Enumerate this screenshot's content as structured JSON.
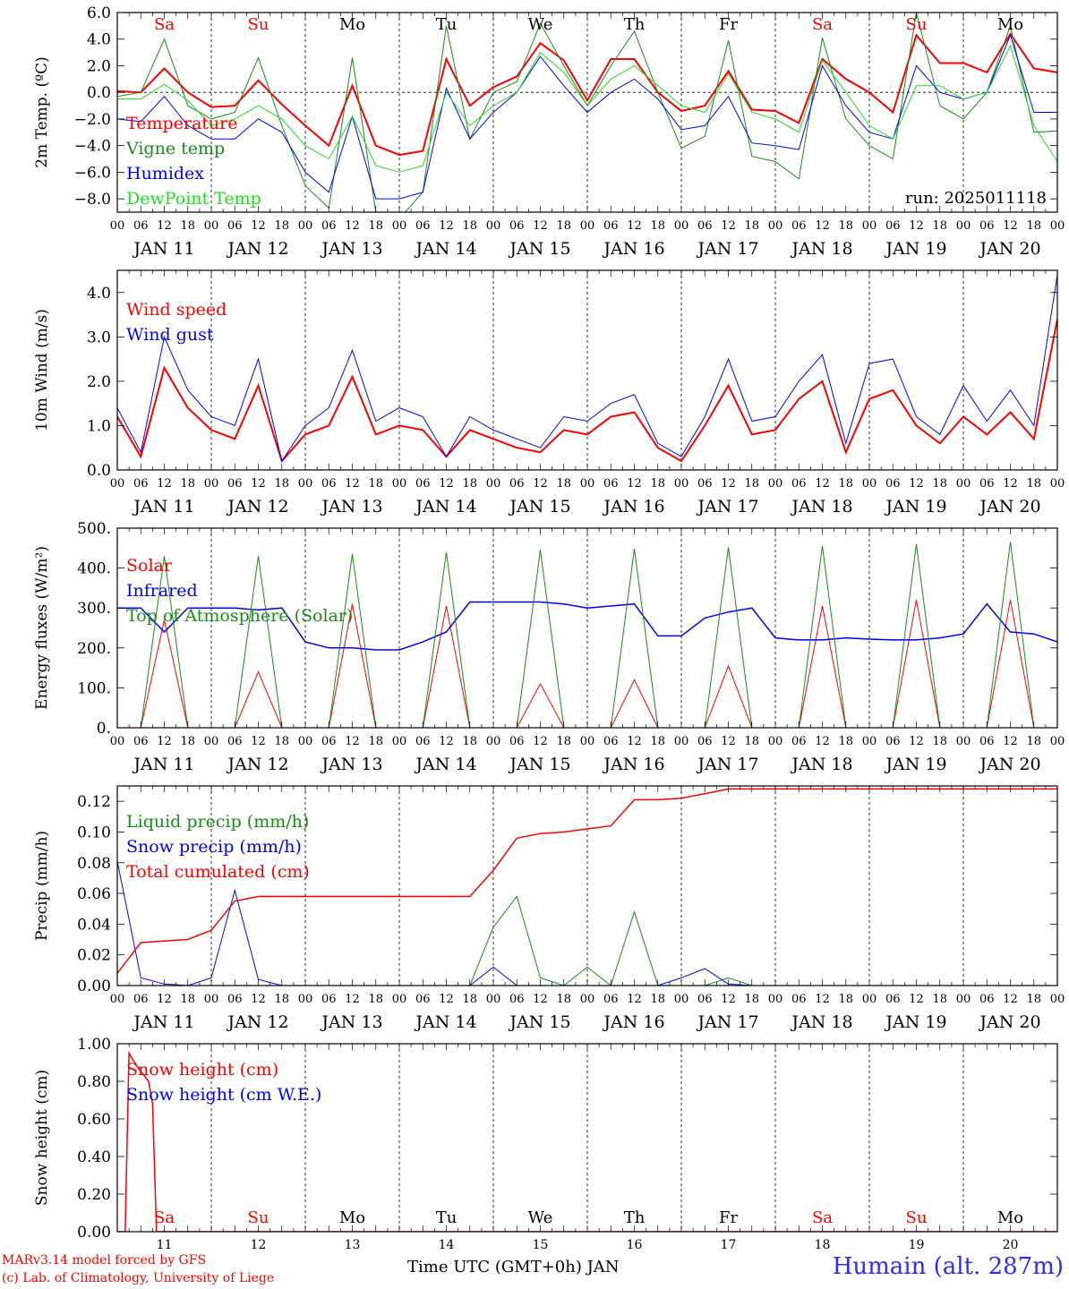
{
  "colors": {
    "red": "#ff0000",
    "green": "#1a8a1a",
    "blue": "#0000ff",
    "lightgreen": "#22dd22",
    "darkred": "#ff0000",
    "black": "#000000"
  },
  "x_axis": {
    "hour_labels": [
      "00",
      "06",
      "12",
      "18"
    ],
    "end_label": "00",
    "days": [
      "JAN 11",
      "JAN 12",
      "JAN 13",
      "JAN 14",
      "JAN 15",
      "JAN 16",
      "JAN 17",
      "JAN 18",
      "JAN 19",
      "JAN 20"
    ],
    "weekdays": [
      "Sa",
      "Su",
      "Mo",
      "Tu",
      "We",
      "Th",
      "Fr",
      "Sa",
      "Su",
      "Mo"
    ],
    "weekday_colors": [
      "#ff0000",
      "#ff0000",
      "#000000",
      "#000000",
      "#000000",
      "#000000",
      "#000000",
      "#ff0000",
      "#ff0000",
      "#000000"
    ],
    "bottom_day_numbers": [
      "11",
      "12",
      "13",
      "14",
      "15",
      "16",
      "17",
      "18",
      "19",
      "20"
    ]
  },
  "footer": {
    "credit1": "MARv3.14 model forced by GFS",
    "credit2": "(c) Lab. of Climatology, University of Liege",
    "time_label": "Time UTC (GMT+0h) JAN",
    "station": "Humain (alt. 287m)"
  },
  "chart_data": [
    {
      "type": "line",
      "ylabel": "2m Temp. (ºC)",
      "ylim": [
        -9,
        6
      ],
      "yticks": [
        -8,
        -6,
        -4,
        -2,
        0,
        2,
        4,
        6
      ],
      "ytick_labels": [
        "−8.0",
        "−6.0",
        "−4.0",
        "−2.0",
        "0.0",
        "2.0",
        "4.0",
        "6.0"
      ],
      "show_weekdays": true,
      "zero_line": true,
      "run_label": "run: 2025011118",
      "x": [
        0,
        6,
        12,
        18,
        24,
        30,
        36,
        42,
        48,
        54,
        60,
        66,
        72,
        78,
        84,
        90,
        96,
        102,
        108,
        114,
        120,
        126,
        132,
        138,
        144,
        150,
        156,
        162,
        168,
        174,
        180,
        186,
        192,
        198,
        204,
        210,
        216,
        222,
        228,
        234,
        240
      ],
      "series": [
        {
          "name": "Temperature",
          "color": "#ff0000",
          "width": 2,
          "values": [
            0.1,
            0.0,
            1.8,
            0.0,
            -1.1,
            -1.0,
            0.9,
            -0.9,
            -2.5,
            -4.0,
            0.5,
            -4.0,
            -4.7,
            -4.4,
            2.5,
            -1.0,
            0.4,
            1.2,
            3.7,
            2.4,
            -0.6,
            2.5,
            2.5,
            0.0,
            -1.4,
            -1.0,
            1.6,
            -1.3,
            -1.4,
            -2.3,
            2.5,
            1.0,
            0.0,
            -1.5,
            4.3,
            2.2,
            2.2,
            1.5,
            4.4,
            1.8,
            1.5
          ]
        },
        {
          "name": "Vigne temp",
          "color": "#1a8a1a",
          "width": 1,
          "values": [
            -0.3,
            0.0,
            4.0,
            -1.0,
            -2.0,
            -1.5,
            2.6,
            -2.5,
            -7.0,
            -8.7,
            2.6,
            -9.0,
            -9.5,
            -7.5,
            5.0,
            -3.5,
            0.0,
            0.8,
            5.2,
            2.0,
            -1.0,
            2.0,
            4.6,
            0.0,
            -4.2,
            -3.3,
            3.9,
            -4.8,
            -5.2,
            -6.5,
            4.1,
            -2.0,
            -4.0,
            -5.0,
            6.0,
            -1.0,
            -2.0,
            0.0,
            5.0,
            -3.0,
            -2.9
          ]
        },
        {
          "name": "Humidex",
          "color": "#0000ff",
          "width": 1,
          "values": [
            -2.0,
            -2.2,
            -0.3,
            -2.5,
            -3.5,
            -3.5,
            -2.0,
            -3.0,
            -6.0,
            -7.5,
            -1.8,
            -8.0,
            -8.0,
            -7.5,
            0.3,
            -3.5,
            -1.5,
            0.0,
            2.7,
            0.5,
            -1.5,
            0.0,
            1.0,
            -0.5,
            -2.8,
            -2.5,
            -0.3,
            -3.8,
            -4.0,
            -4.3,
            2.0,
            -1.0,
            -3.0,
            -3.5,
            2.0,
            0.0,
            -0.5,
            0.0,
            4.3,
            -1.5,
            -1.5
          ]
        },
        {
          "name": "DewPoint Temp",
          "color": "#22dd22",
          "width": 1,
          "values": [
            -0.5,
            -0.5,
            0.6,
            -0.6,
            -2.5,
            -2.0,
            -1.0,
            -2.0,
            -4.0,
            -5.0,
            -1.8,
            -5.5,
            -6.0,
            -5.5,
            0.0,
            -2.5,
            -1.0,
            0.0,
            3.0,
            1.5,
            -1.0,
            1.0,
            2.0,
            0.5,
            -1.0,
            -1.5,
            1.4,
            -1.5,
            -2.0,
            -3.0,
            2.4,
            0.0,
            -2.5,
            -3.5,
            0.5,
            0.5,
            -0.5,
            0.0,
            3.5,
            -2.5,
            -5.2
          ]
        }
      ]
    },
    {
      "type": "line",
      "ylabel": "10m Wind (m/s)",
      "ylim": [
        0,
        4.5
      ],
      "yticks": [
        0,
        1,
        2,
        3,
        4
      ],
      "ytick_labels": [
        "0.0",
        "1.0",
        "2.0",
        "3.0",
        "4.0"
      ],
      "show_weekdays": false,
      "x": [
        0,
        6,
        12,
        18,
        24,
        30,
        36,
        42,
        48,
        54,
        60,
        66,
        72,
        78,
        84,
        90,
        96,
        102,
        108,
        114,
        120,
        126,
        132,
        138,
        144,
        150,
        156,
        162,
        168,
        174,
        180,
        186,
        192,
        198,
        204,
        210,
        216,
        222,
        228,
        234,
        240
      ],
      "series": [
        {
          "name": "Wind speed",
          "color": "#ff0000",
          "width": 2,
          "values": [
            1.2,
            0.3,
            2.3,
            1.4,
            0.9,
            0.7,
            1.9,
            0.2,
            0.8,
            1.0,
            2.1,
            0.8,
            1.0,
            0.9,
            0.3,
            0.9,
            0.7,
            0.5,
            0.4,
            0.9,
            0.8,
            1.2,
            1.3,
            0.5,
            0.2,
            1.0,
            1.9,
            0.8,
            0.9,
            1.6,
            2.0,
            0.4,
            1.6,
            1.8,
            1.0,
            0.6,
            1.2,
            0.8,
            1.3,
            0.7,
            3.4
          ]
        },
        {
          "name": "Wind gust",
          "color": "#0000ff",
          "width": 1,
          "values": [
            1.4,
            0.4,
            3.0,
            1.8,
            1.2,
            1.0,
            2.5,
            0.2,
            1.0,
            1.4,
            2.7,
            1.1,
            1.4,
            1.2,
            0.3,
            1.2,
            0.9,
            0.7,
            0.5,
            1.2,
            1.1,
            1.5,
            1.7,
            0.6,
            0.3,
            1.2,
            2.5,
            1.1,
            1.2,
            2.0,
            2.6,
            0.6,
            2.4,
            2.5,
            1.2,
            0.8,
            1.9,
            1.1,
            1.8,
            1.0,
            4.4
          ]
        }
      ]
    },
    {
      "type": "line",
      "ylabel": "Energy fluxes (W/m²)",
      "ylim": [
        0,
        500
      ],
      "yticks": [
        0,
        100,
        200,
        300,
        400,
        500
      ],
      "ytick_labels": [
        "0.",
        "100.",
        "200.",
        "300.",
        "400.",
        "500."
      ],
      "show_weekdays": false,
      "x": [
        0,
        6,
        12,
        18,
        24,
        30,
        36,
        42,
        48,
        54,
        60,
        66,
        72,
        78,
        84,
        90,
        96,
        102,
        108,
        114,
        120,
        126,
        132,
        138,
        144,
        150,
        156,
        162,
        168,
        174,
        180,
        186,
        192,
        198,
        204,
        210,
        216,
        222,
        228,
        234,
        240
      ],
      "series": [
        {
          "name": "Solar",
          "color": "#ff0000",
          "width": 1,
          "values": [
            0,
            0,
            270,
            0,
            0,
            0,
            140,
            0,
            0,
            0,
            310,
            0,
            0,
            0,
            305,
            0,
            0,
            0,
            110,
            0,
            0,
            0,
            120,
            0,
            0,
            0,
            155,
            0,
            0,
            0,
            305,
            0,
            0,
            0,
            320,
            0,
            0,
            0,
            320,
            0,
            0
          ]
        },
        {
          "name": "Infrared",
          "color": "#0000ff",
          "width": 1.5,
          "values": [
            300,
            300,
            240,
            300,
            300,
            300,
            295,
            300,
            215,
            200,
            200,
            195,
            195,
            215,
            240,
            315,
            315,
            315,
            315,
            310,
            300,
            305,
            310,
            230,
            230,
            275,
            290,
            300,
            225,
            220,
            220,
            225,
            222,
            220,
            220,
            225,
            235,
            310,
            240,
            235,
            215
          ]
        },
        {
          "name": "Top of Atmosphere (Solar)",
          "color": "#1a8a1a",
          "width": 1,
          "values": [
            0,
            0,
            430,
            0,
            0,
            0,
            430,
            0,
            0,
            0,
            435,
            0,
            0,
            0,
            440,
            0,
            0,
            0,
            445,
            0,
            0,
            0,
            448,
            0,
            0,
            0,
            452,
            0,
            0,
            0,
            455,
            0,
            0,
            0,
            460,
            0,
            0,
            0,
            465,
            0,
            0
          ]
        }
      ]
    },
    {
      "type": "line",
      "ylabel": "Precip (mm/h)",
      "ylim": [
        0,
        0.13
      ],
      "yticks": [
        0,
        0.02,
        0.04,
        0.06,
        0.08,
        0.1,
        0.12
      ],
      "ytick_labels": [
        "0.00",
        "0.02",
        "0.04",
        "0.06",
        "0.08",
        "0.10",
        "0.12"
      ],
      "show_weekdays": false,
      "x": [
        0,
        6,
        12,
        18,
        24,
        30,
        36,
        42,
        48,
        54,
        60,
        66,
        72,
        78,
        84,
        90,
        96,
        102,
        108,
        114,
        120,
        126,
        132,
        138,
        144,
        150,
        156,
        162,
        168,
        174,
        180,
        186,
        192,
        198,
        204,
        210,
        216,
        222,
        228,
        234,
        240
      ],
      "series": [
        {
          "name": "Liquid precip (mm/h)",
          "color": "#1a8a1a",
          "width": 1,
          "values": [
            0,
            0,
            0,
            0,
            0,
            0,
            0,
            0,
            0,
            0,
            0,
            0,
            0,
            0,
            0,
            0,
            0.038,
            0.058,
            0.005,
            0,
            0.012,
            0,
            0.048,
            0,
            0,
            0,
            0.005,
            0,
            0,
            0,
            0,
            0,
            0,
            0,
            0,
            0,
            0,
            0,
            0,
            0,
            0
          ]
        },
        {
          "name": "Snow precip (mm/h)",
          "color": "#0000ff",
          "width": 1,
          "values": [
            0.081,
            0.005,
            0.001,
            0,
            0.005,
            0.062,
            0.004,
            0,
            0,
            0,
            0,
            0,
            0,
            0,
            0,
            0,
            0.012,
            0,
            0,
            0,
            0,
            0,
            0,
            0,
            0.005,
            0.011,
            0.001,
            0,
            0,
            0,
            0,
            0,
            0,
            0,
            0,
            0,
            0,
            0,
            0,
            0,
            0
          ]
        },
        {
          "name": "Total cumulated (cm)",
          "color": "#ff0000",
          "width": 1.5,
          "values": [
            0.008,
            0.028,
            0.029,
            0.03,
            0.036,
            0.055,
            0.058,
            0.058,
            0.058,
            0.058,
            0.058,
            0.058,
            0.058,
            0.058,
            0.058,
            0.058,
            0.075,
            0.096,
            0.099,
            0.1,
            0.102,
            0.104,
            0.121,
            0.121,
            0.122,
            0.125,
            0.128,
            0.128,
            0.128,
            0.128,
            0.128,
            0.128,
            0.128,
            0.128,
            0.128,
            0.128,
            0.128,
            0.128,
            0.128,
            0.128,
            0.128
          ]
        }
      ]
    },
    {
      "type": "line",
      "ylabel": "Snow height (cm)",
      "ylim": [
        0,
        1.0
      ],
      "yticks": [
        0,
        0.2,
        0.4,
        0.6,
        0.8,
        1.0
      ],
      "ytick_labels": [
        "0.00",
        "0.20",
        "0.40",
        "0.60",
        "0.80",
        "1.00"
      ],
      "show_weekdays": false,
      "bottom_weekdays": true,
      "x": [
        0,
        2,
        3,
        5,
        8,
        9,
        10,
        240
      ],
      "series": [
        {
          "name": "Snow height (cm)",
          "color": "#ff0000",
          "width": 1.5,
          "values": [
            0,
            0,
            0.95,
            0.88,
            0.8,
            0.68,
            0,
            0
          ]
        },
        {
          "name": "Snow height (cm W.E.)",
          "color": "#0000ff",
          "width": 1,
          "values": [
            0,
            0,
            0,
            0,
            0,
            0,
            0,
            0
          ]
        }
      ]
    }
  ]
}
